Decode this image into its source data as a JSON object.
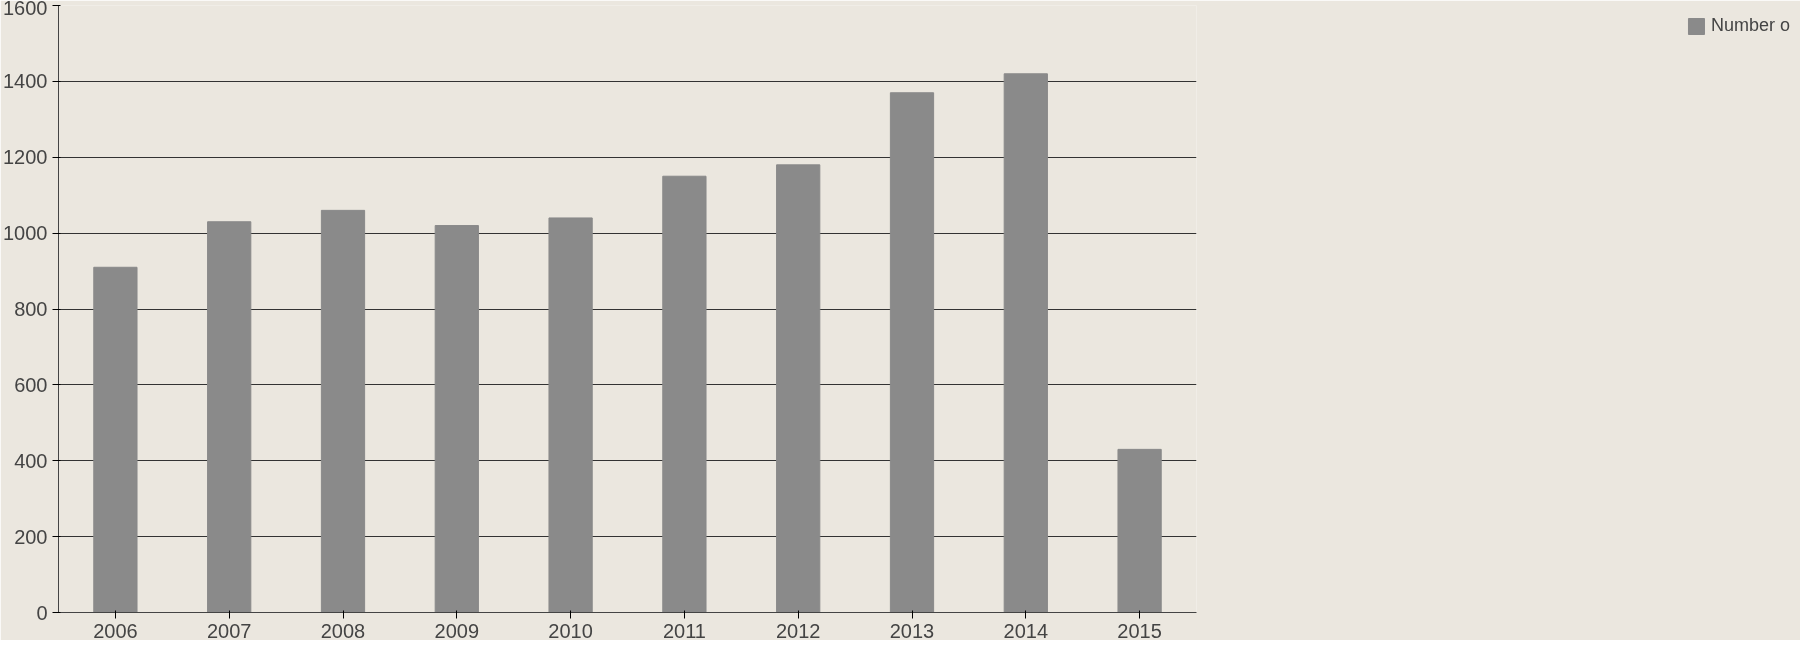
{
  "chart_data": {
    "type": "bar",
    "categories": [
      "2006",
      "2007",
      "2008",
      "2009",
      "2010",
      "2011",
      "2012",
      "2013",
      "2014",
      "2015"
    ],
    "series": [
      {
        "name": "Number o",
        "color": "#8a8a8a",
        "values": [
          910,
          1030,
          1060,
          1020,
          1040,
          1150,
          1180,
          1370,
          1420,
          430
        ]
      }
    ],
    "ylim": [
      0,
      1600
    ],
    "yticks": [
      0,
      200,
      400,
      600,
      800,
      1000,
      1200,
      1400,
      1600
    ],
    "grid": "y",
    "legend": "right"
  }
}
